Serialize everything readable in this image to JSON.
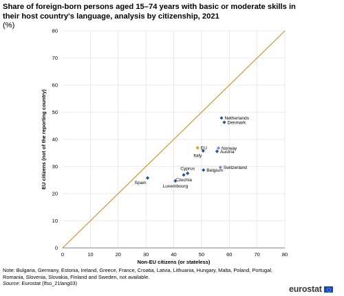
{
  "title": "Share of foreign-born persons aged 15–74 years with basic or moderate skills in their host country's language, analysis by citizenship, 2021",
  "unit": "(%)",
  "note": "Note: Bulgaria, Germany, Estonia, Ireland, Greece, France, Croatia, Latvia, Lithuania, Hungary, Malta, Poland, Portugal, Romania, Slovenia, Slovakia, Finland and Sweden, not available.",
  "source_label": "Source:",
  "source_text": "Eurostat (lfso_21lang03)",
  "logo_text": "eurostat",
  "chart_data": {
    "type": "scatter",
    "xlabel": "Non-EU citizens (or stateless)",
    "ylabel": "EU citizens (not of the reporting country)",
    "xlim": [
      0,
      80
    ],
    "ylim": [
      0,
      80
    ],
    "xticks": [
      0,
      10,
      20,
      30,
      40,
      50,
      60,
      70,
      80
    ],
    "yticks": [
      0,
      10,
      20,
      30,
      40,
      50,
      60,
      70,
      80
    ],
    "grid": true,
    "reference_line": {
      "from": [
        0,
        0
      ],
      "to": [
        80,
        80
      ],
      "color": "#c8962a"
    },
    "colors": {
      "country": "#2f4d9b",
      "eu": "#d4a020",
      "country_light": "#6f8fd6"
    },
    "points": [
      {
        "label": "Netherlands",
        "x": 57.2,
        "y": 47.9,
        "color": "#2f4d9b",
        "label_pos": "right"
      },
      {
        "label": "Denmark",
        "x": 58.2,
        "y": 46.3,
        "color": "#2f4d9b",
        "label_pos": "right"
      },
      {
        "label": "EU",
        "x": 48.6,
        "y": 36.9,
        "color": "#d4a020",
        "label_pos": "right"
      },
      {
        "label": "Italy",
        "x": 50.6,
        "y": 35.8,
        "color": "#2f4d9b",
        "label_pos": "below-left"
      },
      {
        "label": "Norway",
        "x": 56.1,
        "y": 36.8,
        "color": "#6f8fd6",
        "label_pos": "right"
      },
      {
        "label": "Austria",
        "x": 55.6,
        "y": 35.6,
        "color": "#2f4d9b",
        "label_pos": "right"
      },
      {
        "label": "Switzerland",
        "x": 56.8,
        "y": 29.7,
        "color": "#6f8fd6",
        "label_pos": "right"
      },
      {
        "label": "Belgium",
        "x": 50.7,
        "y": 28.7,
        "color": "#2f4d9b",
        "label_pos": "right"
      },
      {
        "label": "Cyprus",
        "x": 45.0,
        "y": 27.5,
        "color": "#2f4d9b",
        "label_pos": "above"
      },
      {
        "label": "Czechia",
        "x": 43.6,
        "y": 26.9,
        "color": "#2f4d9b",
        "label_pos": "below"
      },
      {
        "label": "Spain",
        "x": 30.6,
        "y": 25.8,
        "color": "#2f4d9b",
        "label_pos": "below-left"
      },
      {
        "label": "Luxembourg",
        "x": 40.6,
        "y": 24.7,
        "color": "#2f4d9b",
        "label_pos": "below"
      }
    ]
  }
}
